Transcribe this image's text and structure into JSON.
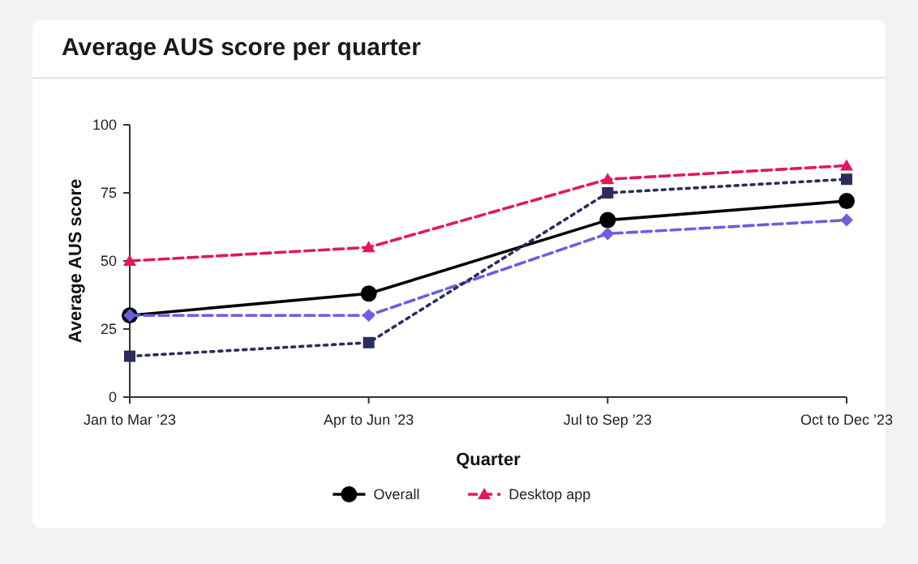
{
  "chart_data": {
    "type": "line",
    "title": "Average AUS score per quarter",
    "xlabel": "Quarter",
    "ylabel": "Average AUS score",
    "categories": [
      "Jan to Mar ’23",
      "Apr to Jun ’23",
      "Jul to Sep ’23",
      "Oct to Dec ’23"
    ],
    "ylim": [
      0,
      100
    ],
    "yticks": [
      0,
      25,
      50,
      75,
      100
    ],
    "grid": false,
    "legend": "bottom",
    "series": [
      {
        "name": "Overall",
        "color": "#000000",
        "values": [
          30,
          38,
          65,
          72
        ],
        "marker": "circle",
        "line_style": "solid"
      },
      {
        "color": "#6b5fe0",
        "values": [
          30,
          30,
          60,
          65
        ],
        "marker": "diamond",
        "line_style": "dashed"
      },
      {
        "color": "#2b2d5c",
        "values": [
          15,
          20,
          75,
          80
        ],
        "marker": "square",
        "line_style": "dotted"
      },
      {
        "name": "Desktop app",
        "color": "#e3175d",
        "values": [
          50,
          55,
          80,
          85
        ],
        "marker": "triangle",
        "line_style": "dashed"
      }
    ]
  }
}
